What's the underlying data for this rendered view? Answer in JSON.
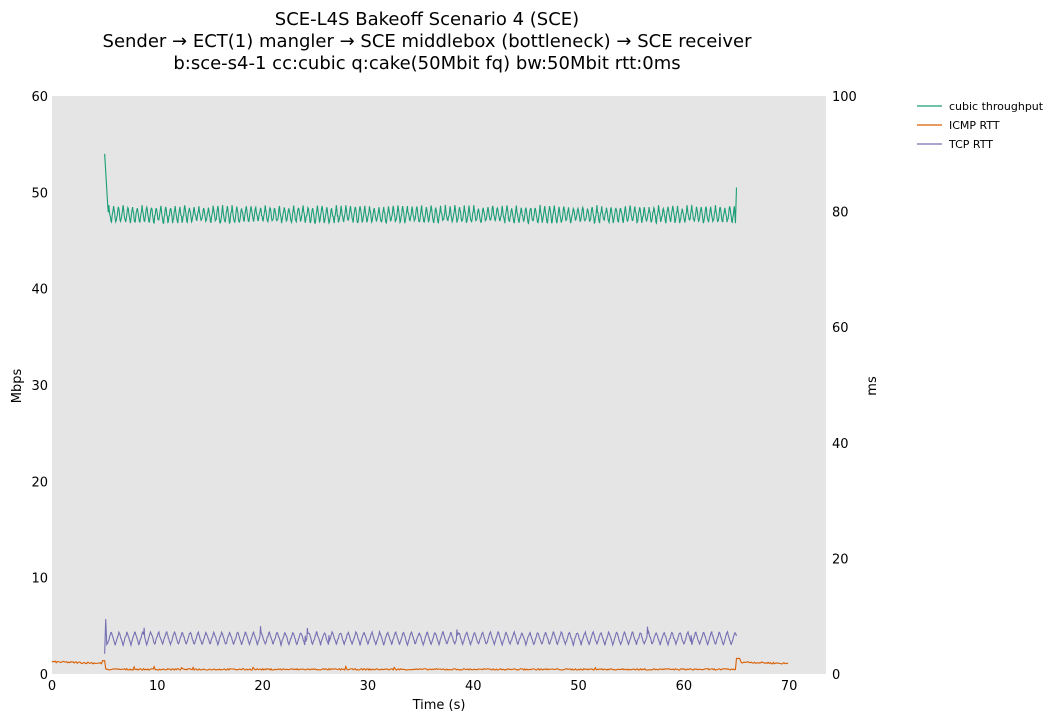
{
  "chart_data": {
    "type": "line",
    "title_lines": [
      "SCE-L4S Bakeoff Scenario 4 (SCE)",
      "Sender → ECT(1) mangler → SCE middlebox (bottleneck) → SCE receiver",
      "b:sce-s4-1 cc:cubic q:cake(50Mbit fq) bw:50Mbit rtt:0ms"
    ],
    "xlabel": "Time (s)",
    "ylabel_left": "Mbps",
    "ylabel_right": "ms",
    "xlim": [
      0,
      73.5
    ],
    "ylim_left": [
      0,
      60
    ],
    "ylim_right": [
      0,
      100
    ],
    "xticks": [
      0,
      10,
      20,
      30,
      40,
      50,
      60,
      70
    ],
    "yticks_left": [
      0,
      10,
      20,
      30,
      40,
      50,
      60
    ],
    "yticks_right": [
      0,
      20,
      40,
      60,
      80,
      100
    ],
    "background": "#e5e5e5",
    "grid": false,
    "legend_position": "outside-top-right",
    "series": [
      {
        "name": "cubic throughput",
        "axis": "left",
        "color": "#1b9e77",
        "start": 5.0,
        "end": 65.0,
        "initial_peak": 54.0,
        "steady_mean": 47.8,
        "oscillation_high": 48.5,
        "oscillation_low": 46.8,
        "oscillation_period_s": 0.45,
        "final_spike": 50.5
      },
      {
        "name": "ICMP RTT",
        "axis": "right",
        "color": "#d95f02",
        "start": 0.0,
        "end": 70.0,
        "idle_level": 2.1,
        "loaded_level": 0.8,
        "load_start": 5.0,
        "load_end": 65.0
      },
      {
        "name": "TCP RTT",
        "axis": "right",
        "color": "#7570b3",
        "start": 5.0,
        "end": 65.0,
        "initial_peak": 9.5,
        "oscillation_high": 7.3,
        "oscillation_low": 5.1,
        "oscillation_period_s": 0.75
      }
    ]
  }
}
